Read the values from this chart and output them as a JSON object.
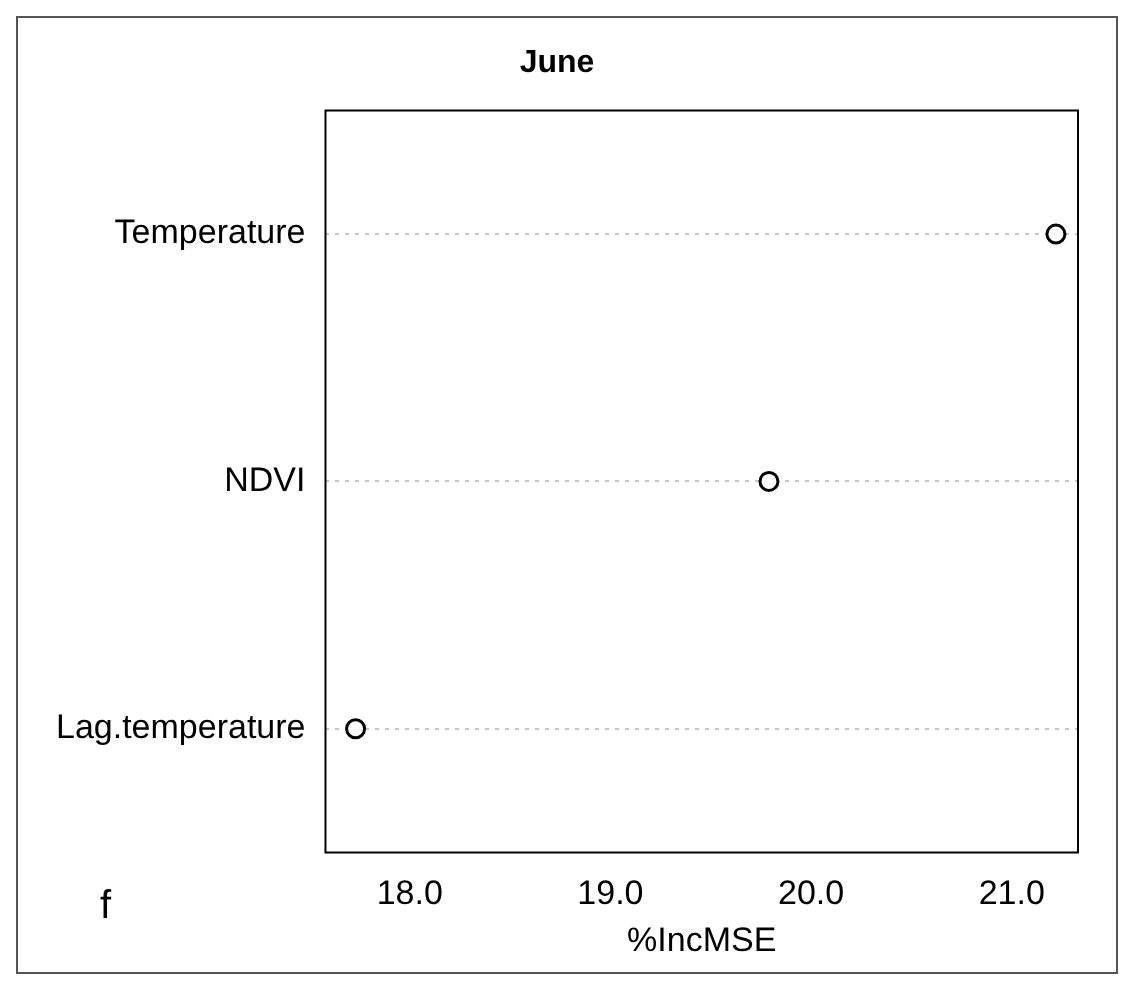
{
  "chart_data": {
    "type": "scatter",
    "title": "June",
    "xlabel": "%IncMSE",
    "categories": [
      "Temperature",
      "NDVI",
      "Lag.temperature"
    ],
    "series": [
      {
        "color": "#000000",
        "values": [
          21.22,
          19.79,
          17.73
        ]
      }
    ],
    "xlim": [
      17.58,
      21.33
    ],
    "xticks": [
      {
        "value": 18,
        "label": "18.0"
      },
      {
        "value": 19,
        "label": "19.0"
      },
      {
        "value": 20,
        "label": "20.0"
      },
      {
        "value": 21,
        "label": "21.0"
      }
    ],
    "orientation": "horizontal",
    "grid": "y",
    "marker": "circle",
    "legend": false,
    "annotations": [
      "f"
    ]
  }
}
